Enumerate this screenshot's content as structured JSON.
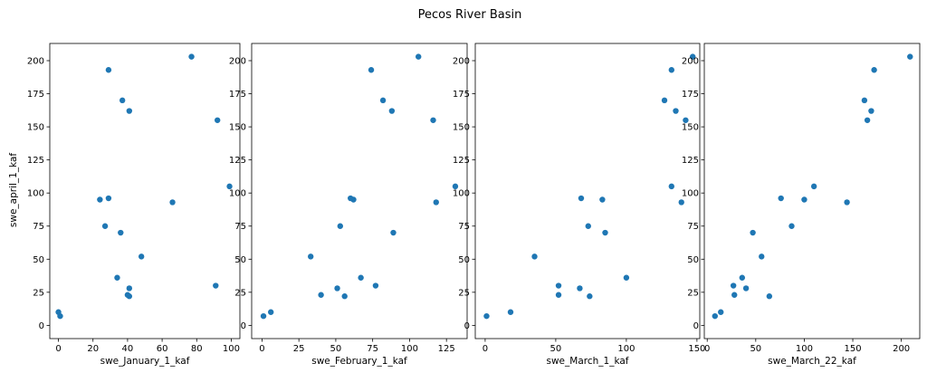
{
  "chart_data": {
    "type": "scatter",
    "title": "Pecos River Basin",
    "ylabel": "swe_april_1_kaf",
    "marker_color": "#1f77b4",
    "y": [
      7,
      10,
      22,
      23,
      28,
      30,
      36,
      52,
      70,
      75,
      93,
      95,
      96,
      105,
      155,
      162,
      170,
      193,
      203
    ],
    "yticks": [
      0,
      25,
      50,
      75,
      100,
      125,
      150,
      175,
      200
    ],
    "ylim": [
      -10,
      213
    ],
    "panels": [
      {
        "xlabel": "swe_January_1_kaf",
        "xlim": [
          -5,
          105
        ],
        "xticks": [
          0,
          20,
          40,
          60,
          80,
          100
        ],
        "x": [
          1,
          0,
          41,
          40,
          41,
          91,
          34,
          48,
          36,
          27,
          66,
          24,
          29,
          99,
          92,
          41,
          37,
          29,
          77
        ]
      },
      {
        "xlabel": "swe_February_1_kaf",
        "xlim": [
          -7,
          139
        ],
        "xticks": [
          0,
          25,
          50,
          75,
          100,
          125
        ],
        "x": [
          1,
          6,
          56,
          40,
          51,
          77,
          67,
          33,
          89,
          53,
          118,
          62,
          60,
          131,
          116,
          88,
          82,
          74,
          106
        ]
      },
      {
        "xlabel": "swe_March_1_kaf",
        "xlim": [
          -7,
          152
        ],
        "xticks": [
          0,
          50,
          100,
          150
        ],
        "x": [
          1,
          18,
          74,
          52,
          67,
          52,
          100,
          35,
          85,
          73,
          139,
          83,
          68,
          132,
          142,
          135,
          127,
          132,
          147
        ]
      },
      {
        "xlabel": "swe_March_22_kaf",
        "xlim": [
          -3,
          219
        ],
        "xticks": [
          0,
          50,
          100,
          150,
          200
        ],
        "x": [
          8,
          14,
          64,
          28,
          40,
          27,
          36,
          56,
          47,
          87,
          144,
          100,
          76,
          110,
          165,
          169,
          162,
          172,
          209
        ]
      }
    ]
  }
}
